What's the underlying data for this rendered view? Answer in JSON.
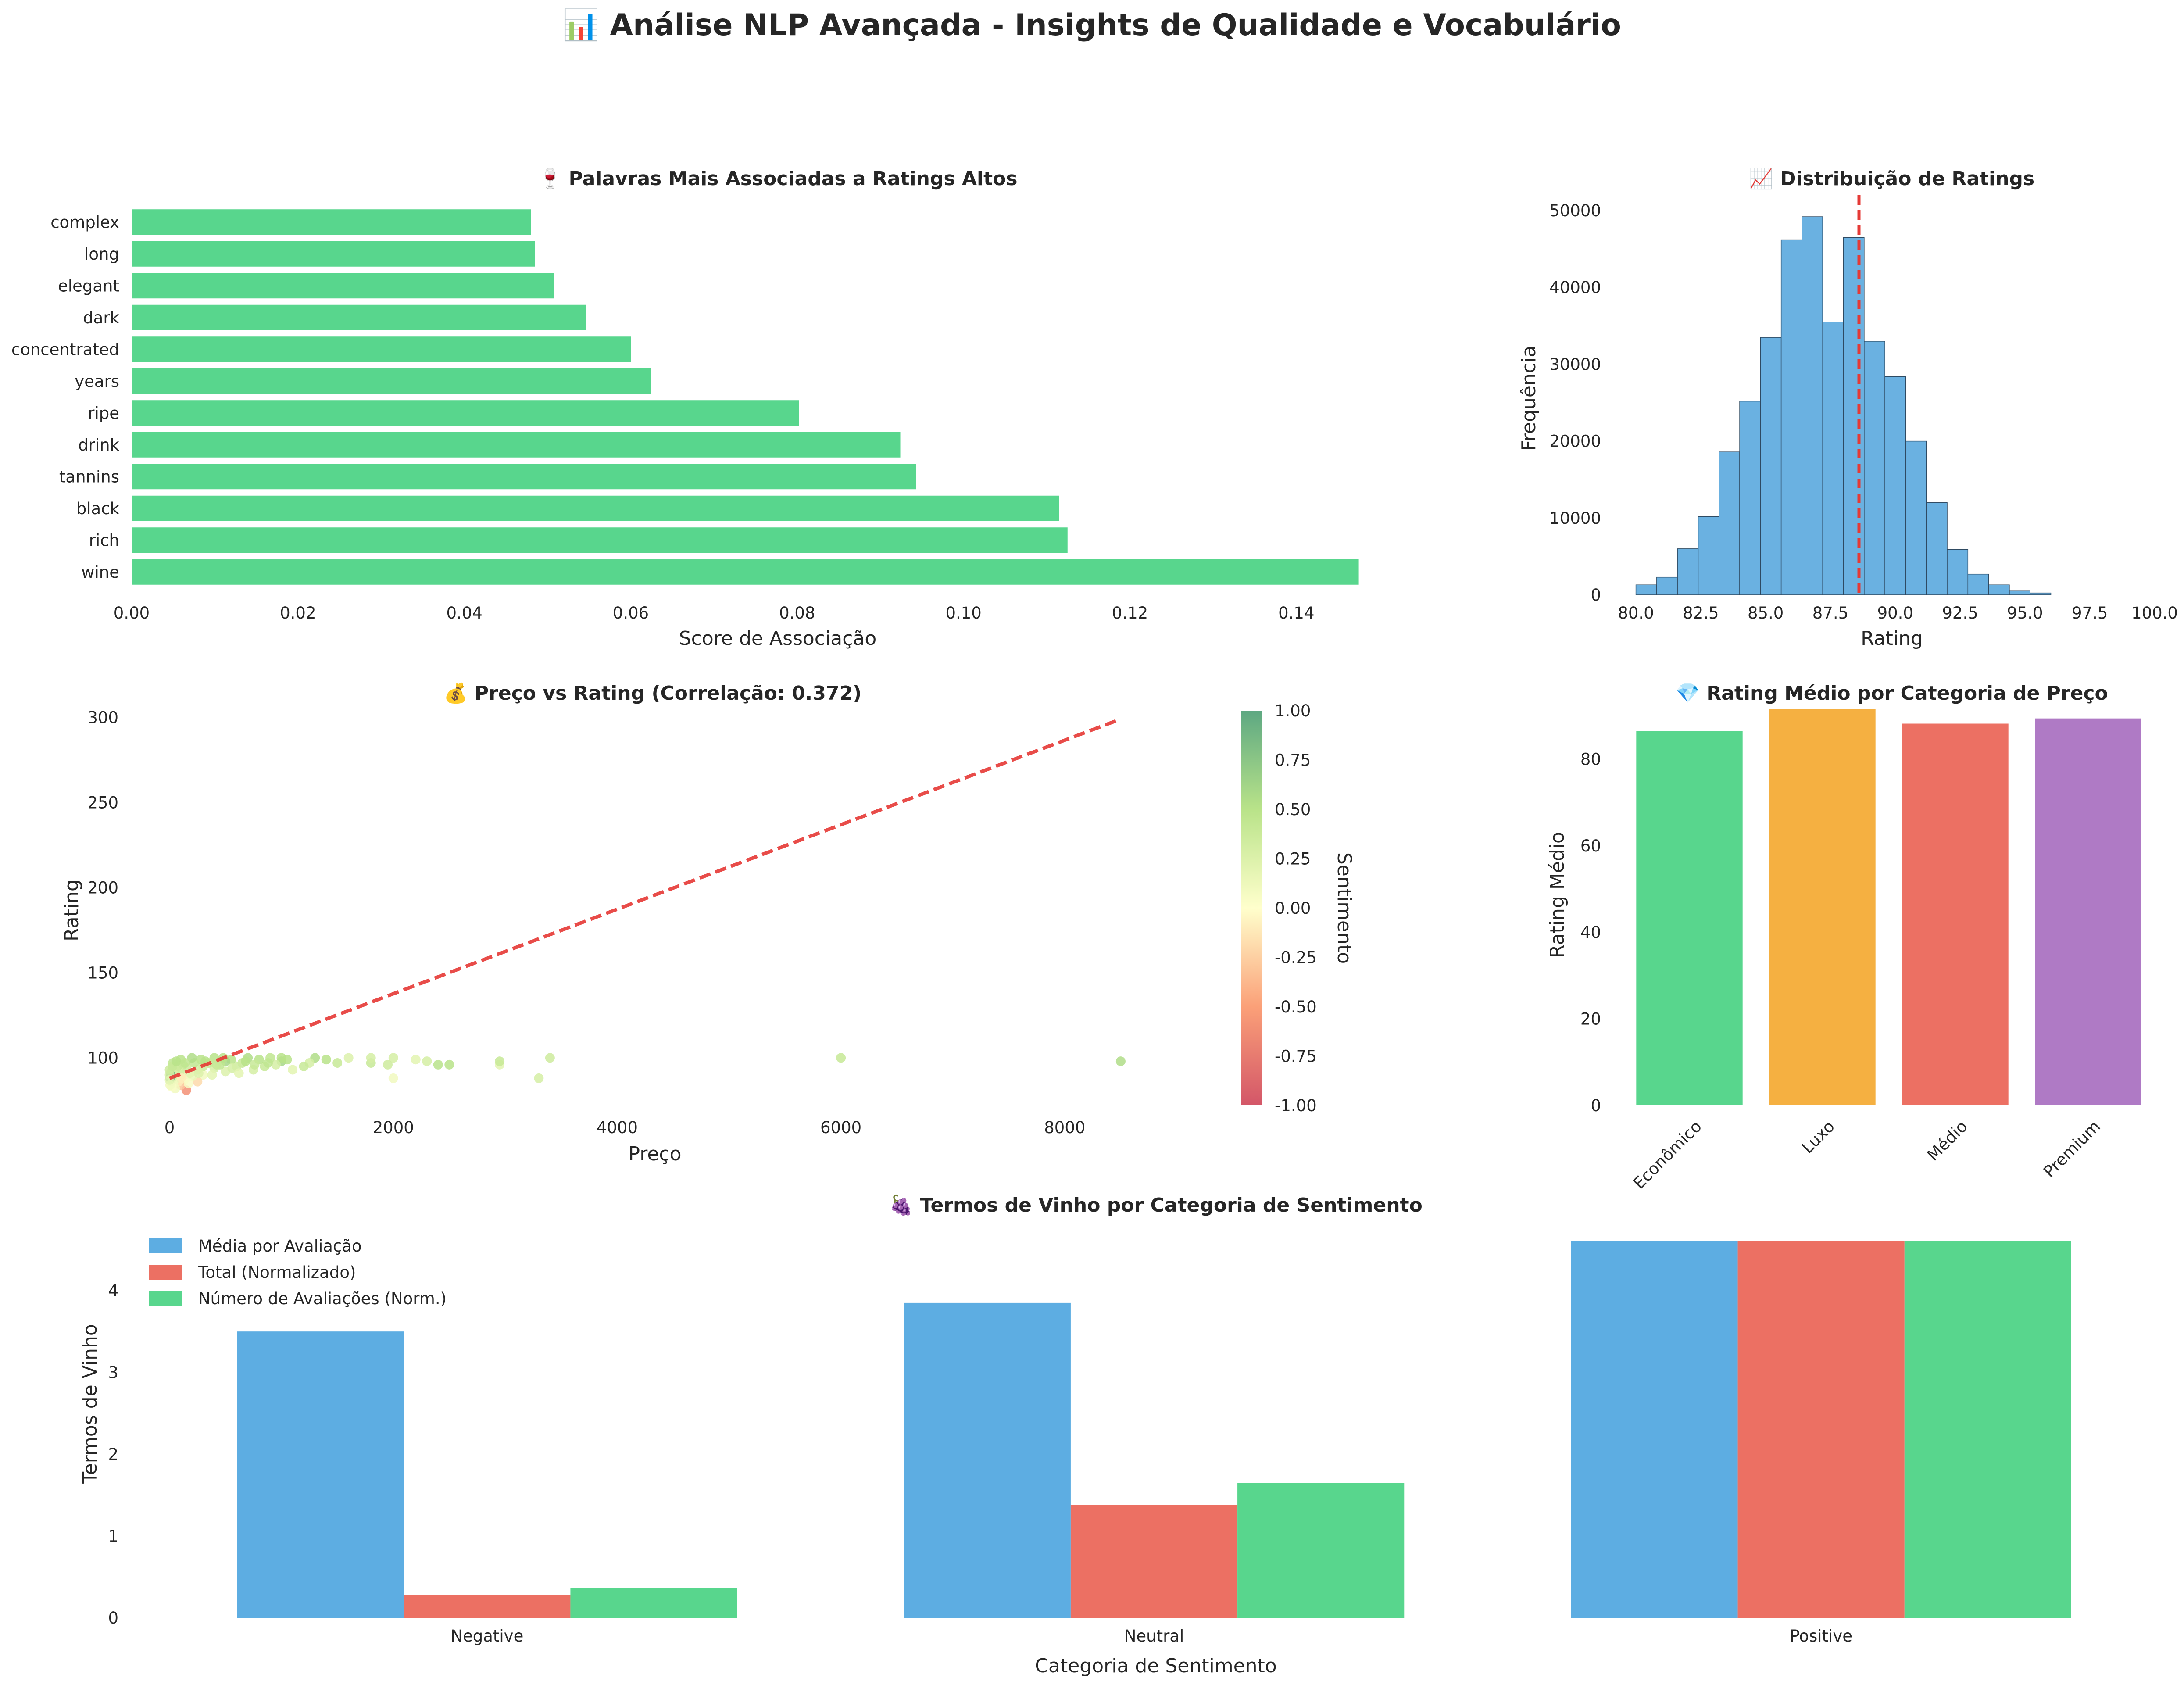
{
  "figure": {
    "title": "📊 Análise NLP Avançada - Insights de Qualidade e Vocabulário"
  },
  "colors": {
    "bar_green": "#58d68d",
    "hist_blue": "#6ab1e1",
    "ref_red": "#e53935",
    "blue": "#5dade2",
    "red": "#ec7063",
    "green": "#58d68d",
    "orange": "#f5b041",
    "purple": "#af7ac5"
  },
  "chart_data": [
    {
      "id": "words",
      "type": "bar",
      "orientation": "horizontal",
      "title": "🍷 Palavras Mais Associadas a Ratings Altos",
      "xlabel": "Score de Associação",
      "ylabel": "",
      "categories": [
        "wine",
        "rich",
        "black",
        "tannins",
        "drink",
        "ripe",
        "years",
        "concentrated",
        "dark",
        "elegant",
        "long",
        "complex"
      ],
      "values": [
        0.1475,
        0.1125,
        0.1115,
        0.0943,
        0.0924,
        0.0802,
        0.0624,
        0.06,
        0.0546,
        0.0508,
        0.0485,
        0.048
      ],
      "xlim": [
        0,
        0.15
      ],
      "xticks": [
        "0.00",
        "0.02",
        "0.04",
        "0.06",
        "0.08",
        "0.10",
        "0.12",
        "0.14"
      ],
      "grid": false
    },
    {
      "id": "hist",
      "type": "bar",
      "subtype": "histogram",
      "title": "📈 Distribuição de Ratings",
      "xlabel": "Rating",
      "ylabel": "Frequência",
      "bin_start": 80,
      "bin_width": 0.8,
      "values": [
        1300,
        2300,
        6000,
        10200,
        18600,
        25200,
        33500,
        46200,
        49200,
        35500,
        46500,
        33000,
        28400,
        20000,
        12000,
        5900,
        2700,
        1300,
        500,
        250
      ],
      "mean_line": 88.6,
      "xlim": [
        79.5,
        100
      ],
      "ylim": [
        0,
        52000
      ],
      "xticks": [
        "80.0",
        "82.5",
        "85.0",
        "87.5",
        "90.0",
        "92.5",
        "95.0",
        "97.5",
        "100.0"
      ],
      "yticks": [
        "0",
        "10000",
        "20000",
        "30000",
        "40000",
        "50000"
      ],
      "grid": false
    },
    {
      "id": "scatter",
      "type": "scatter",
      "title": "💰 Preço vs Rating (Correlação: 0.372)",
      "xlabel": "Preço",
      "ylabel": "Rating",
      "colorbar_label": "Sentimento",
      "xlim": [
        -300,
        9500
      ],
      "ylim": [
        72,
        306
      ],
      "xticks": [
        "0",
        "2000",
        "4000",
        "6000",
        "8000"
      ],
      "yticks": [
        "100",
        "150",
        "200",
        "250",
        "300"
      ],
      "colorbar_ticks": [
        "1.00",
        "0.75",
        "0.50",
        "0.25",
        "0.00",
        "-0.25",
        "-0.50",
        "-0.75",
        "-1.00"
      ],
      "trend_line": {
        "x": [
          0,
          8500
        ],
        "y": [
          88,
          299
        ]
      },
      "points": [
        [
          8500,
          98,
          0.55
        ],
        [
          6000,
          100,
          0.4
        ],
        [
          3400,
          100,
          0.35
        ],
        [
          3300,
          88,
          0.3
        ],
        [
          2950,
          96,
          0.2
        ],
        [
          2950,
          98,
          0.4
        ],
        [
          2500,
          96,
          0.5
        ],
        [
          2400,
          96,
          0.5
        ],
        [
          2300,
          98,
          0.3
        ],
        [
          2200,
          99,
          0.2
        ],
        [
          2000,
          100,
          0.3
        ],
        [
          2000,
          88,
          0.1
        ],
        [
          1950,
          96,
          0.35
        ],
        [
          1800,
          97,
          0.4
        ],
        [
          1800,
          100,
          0.3
        ],
        [
          1600,
          100,
          0.25
        ],
        [
          1500,
          97,
          0.4
        ],
        [
          1400,
          99,
          0.5
        ],
        [
          1300,
          100,
          0.55
        ],
        [
          1250,
          97,
          0.3
        ],
        [
          1200,
          95,
          0.4
        ],
        [
          1100,
          93,
          0.2
        ],
        [
          1000,
          98,
          0.6
        ],
        [
          1000,
          100,
          0.5
        ],
        [
          950,
          96,
          0.3
        ],
        [
          900,
          100,
          0.45
        ],
        [
          850,
          95,
          0.4
        ],
        [
          800,
          99,
          0.5
        ],
        [
          750,
          93,
          0.3
        ],
        [
          700,
          100,
          0.55
        ],
        [
          650,
          97,
          0.4
        ],
        [
          600,
          95,
          0.35
        ],
        [
          550,
          99,
          0.5
        ],
        [
          500,
          92,
          0.25
        ],
        [
          500,
          98,
          0.6
        ],
        [
          450,
          96,
          0.45
        ],
        [
          400,
          94,
          0.3
        ],
        [
          400,
          100,
          0.5
        ],
        [
          350,
          97,
          0.4
        ],
        [
          300,
          90,
          0.1
        ],
        [
          300,
          95,
          0.35
        ],
        [
          280,
          99,
          0.5
        ],
        [
          250,
          86,
          -0.2
        ],
        [
          250,
          93,
          0.3
        ],
        [
          220,
          97,
          0.45
        ],
        [
          200,
          89,
          0.15
        ],
        [
          200,
          100,
          0.55
        ],
        [
          180,
          91,
          0.2
        ],
        [
          150,
          81,
          -0.6
        ],
        [
          150,
          94,
          0.35
        ],
        [
          130,
          87,
          0.1
        ],
        [
          120,
          96,
          0.4
        ],
        [
          100,
          84,
          -0.3
        ],
        [
          100,
          90,
          0.2
        ],
        [
          100,
          99,
          0.5
        ],
        [
          90,
          92,
          0.3
        ],
        [
          80,
          86,
          -0.1
        ],
        [
          70,
          95,
          0.4
        ],
        [
          60,
          88,
          0.15
        ],
        [
          50,
          93,
          0.35
        ],
        [
          50,
          82,
          0.1
        ],
        [
          40,
          90,
          0.25
        ],
        [
          30,
          85,
          0.1
        ],
        [
          30,
          97,
          0.45
        ],
        [
          20,
          88,
          0.2
        ],
        [
          20,
          83,
          0.05
        ],
        [
          15,
          92,
          0.3
        ],
        [
          10,
          86,
          0.15
        ],
        [
          10,
          90,
          0.9
        ],
        [
          5,
          88,
          0.95
        ],
        [
          5,
          84,
          0.1
        ],
        [
          0,
          90,
          0.3
        ],
        [
          0,
          87,
          0.2
        ],
        [
          0,
          93,
          0.35
        ],
        [
          25,
          95,
          0.4
        ],
        [
          60,
          98,
          0.5
        ],
        [
          110,
          88,
          -0.1
        ],
        [
          140,
          97,
          0.45
        ],
        [
          170,
          85,
          0.05
        ],
        [
          260,
          91,
          0.25
        ],
        [
          320,
          98,
          0.5
        ],
        [
          380,
          90,
          0.2
        ],
        [
          420,
          96,
          0.4
        ],
        [
          480,
          100,
          0.5
        ],
        [
          560,
          94,
          0.3
        ],
        [
          620,
          91,
          0.2
        ],
        [
          680,
          98,
          0.5
        ],
        [
          760,
          96,
          0.4
        ],
        [
          880,
          97,
          0.45
        ],
        [
          1050,
          99,
          0.5
        ]
      ],
      "grid": false
    },
    {
      "id": "price_cat",
      "type": "bar",
      "title": "💎 Rating Médio por Categoria de Preço",
      "xlabel": "",
      "ylabel": "Rating Médio",
      "categories": [
        "Econômico",
        "Luxo",
        "Médio",
        "Premium"
      ],
      "values": [
        86.5,
        91.5,
        88.2,
        89.4
      ],
      "ylim": [
        0,
        92
      ],
      "yticks": [
        "0",
        "20",
        "40",
        "60",
        "80"
      ],
      "grid": false
    },
    {
      "id": "sentiment",
      "type": "bar",
      "title": "🍇 Termos de Vinho por Categoria de Sentimento",
      "xlabel": "Categoria de Sentimento",
      "ylabel": "Termos de Vinho",
      "categories": [
        "Negative",
        "Neutral",
        "Positive"
      ],
      "series": [
        {
          "name": "Média por Avaliação",
          "values": [
            3.5,
            3.85,
            4.6
          ]
        },
        {
          "name": "Total (Normalizado)",
          "values": [
            0.28,
            1.38,
            4.6
          ]
        },
        {
          "name": "Número de Avaliações (Norm.)",
          "values": [
            0.36,
            1.65,
            4.6
          ]
        }
      ],
      "ylim": [
        0,
        4.6
      ],
      "yticks": [
        "0",
        "1",
        "2",
        "3",
        "4"
      ],
      "legend": "top-left",
      "grid": false
    }
  ]
}
